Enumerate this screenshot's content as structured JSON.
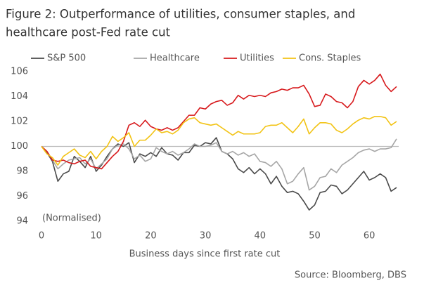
{
  "chart_data": {
    "type": "line",
    "title_lines": [
      "Figure 2: Outperformance of utilities, consumer staples, and",
      "healthcare post-Fed rate cut"
    ],
    "annotation": "(Normalised)",
    "x_label": "Business days since first rate cut",
    "source": "Source: Bloomberg, DBS",
    "x": [
      0,
      1,
      2,
      3,
      4,
      5,
      6,
      7,
      8,
      9,
      10,
      11,
      12,
      13,
      14,
      15,
      16,
      17,
      18,
      19,
      20,
      21,
      22,
      23,
      24,
      25,
      26,
      27,
      28,
      29,
      30,
      31,
      32,
      33,
      34,
      35,
      36,
      37,
      38,
      39,
      40,
      41,
      42,
      43,
      44,
      45,
      46,
      47,
      48,
      49,
      50,
      51,
      52,
      53,
      54,
      55,
      56,
      57,
      58,
      59,
      60,
      61,
      62,
      63,
      64,
      65
    ],
    "xlim": [
      0,
      65
    ],
    "xticks": [
      0,
      10,
      20,
      30,
      40,
      50,
      60
    ],
    "ylim": [
      94,
      106
    ],
    "yticks": [
      94,
      96,
      98,
      100,
      102,
      104,
      106
    ],
    "reference_line": 100,
    "series": [
      {
        "name": "S&P 500",
        "color": "#4a4a4a",
        "values": [
          100,
          99.5,
          98.8,
          97.2,
          97.8,
          98,
          99.2,
          98.8,
          98.3,
          99.2,
          98,
          98.5,
          99.2,
          99.8,
          100.2,
          100,
          100.3,
          98.7,
          99.4,
          99.2,
          99.5,
          99.2,
          99.9,
          99.4,
          99.3,
          98.9,
          99.5,
          99.5,
          100.1,
          100.0,
          100.3,
          100.2,
          100.7,
          99.6,
          99.4,
          99.0,
          98.2,
          97.9,
          98.3,
          97.8,
          98.2,
          97.8,
          97.0,
          97.6,
          96.8,
          96.3,
          96.4,
          96.2,
          95.6,
          94.9,
          95.3,
          96.3,
          96.4,
          96.9,
          96.8,
          96.2,
          96.5,
          97.0,
          97.5,
          98.0,
          97.3,
          97.5,
          97.8,
          97.5,
          96.4,
          96.7
        ]
      },
      {
        "name": "Healthcare",
        "color": "#a6a6a6",
        "values": [
          100,
          99.6,
          98.9,
          98.2,
          98.6,
          98.9,
          99.0,
          99.1,
          98.6,
          99.0,
          98.2,
          98.6,
          99.0,
          99.8,
          100.1,
          100.2,
          99.8,
          99.0,
          99.3,
          98.8,
          99.0,
          99.9,
          99.6,
          99.4,
          99.6,
          99.3,
          99.5,
          99.8,
          100.2,
          100.0,
          100.0,
          100.1,
          100.3,
          99.6,
          99.4,
          99.6,
          99.3,
          99.5,
          99.2,
          99.4,
          98.8,
          98.7,
          98.4,
          98.8,
          98.2,
          97.0,
          97.2,
          97.8,
          98.3,
          96.5,
          96.8,
          97.5,
          97.6,
          98.2,
          97.9,
          98.5,
          98.8,
          99.1,
          99.5,
          99.7,
          99.8,
          99.6,
          99.8,
          99.8,
          99.9,
          100.6
        ]
      },
      {
        "name": "Utilities",
        "color": "#d7191c",
        "values": [
          100,
          99.6,
          98.9,
          98.8,
          98.9,
          98.7,
          98.6,
          98.8,
          98.9,
          98.4,
          98.3,
          98.2,
          98.7,
          99.2,
          99.6,
          100.4,
          101.7,
          101.9,
          101.6,
          102.1,
          101.6,
          101.4,
          101.3,
          101.5,
          101.3,
          101.5,
          102.0,
          102.5,
          102.5,
          103.1,
          103.0,
          103.4,
          103.6,
          103.7,
          103.3,
          103.5,
          104.1,
          103.8,
          104.1,
          104.0,
          104.1,
          104.0,
          104.3,
          104.4,
          104.6,
          104.5,
          104.7,
          104.7,
          104.9,
          104.2,
          103.2,
          103.3,
          104.2,
          104.0,
          103.6,
          103.5,
          103.1,
          103.6,
          104.8,
          105.3,
          105.0,
          105.3,
          105.8,
          104.9,
          104.4,
          104.8
        ]
      },
      {
        "name": "Cons. Staples",
        "color": "#f2c314",
        "values": [
          100,
          99.4,
          99.1,
          98.5,
          99.2,
          99.5,
          99.8,
          99.3,
          99.1,
          99.6,
          99.0,
          99.6,
          100.0,
          100.8,
          100.4,
          100.7,
          101.1,
          100.0,
          100.5,
          100.5,
          100.9,
          101.4,
          101.1,
          101.2,
          101.0,
          101.3,
          101.9,
          102.2,
          102.3,
          101.9,
          101.8,
          101.7,
          101.8,
          101.5,
          101.2,
          100.9,
          101.2,
          101.0,
          101.0,
          101.0,
          101.1,
          101.6,
          101.7,
          101.7,
          101.9,
          101.5,
          101.1,
          101.6,
          102.2,
          101.0,
          101.5,
          101.9,
          101.9,
          101.8,
          101.3,
          101.1,
          101.4,
          101.8,
          102.1,
          102.3,
          102.2,
          102.4,
          102.4,
          102.3,
          101.7,
          102.0
        ]
      }
    ]
  }
}
